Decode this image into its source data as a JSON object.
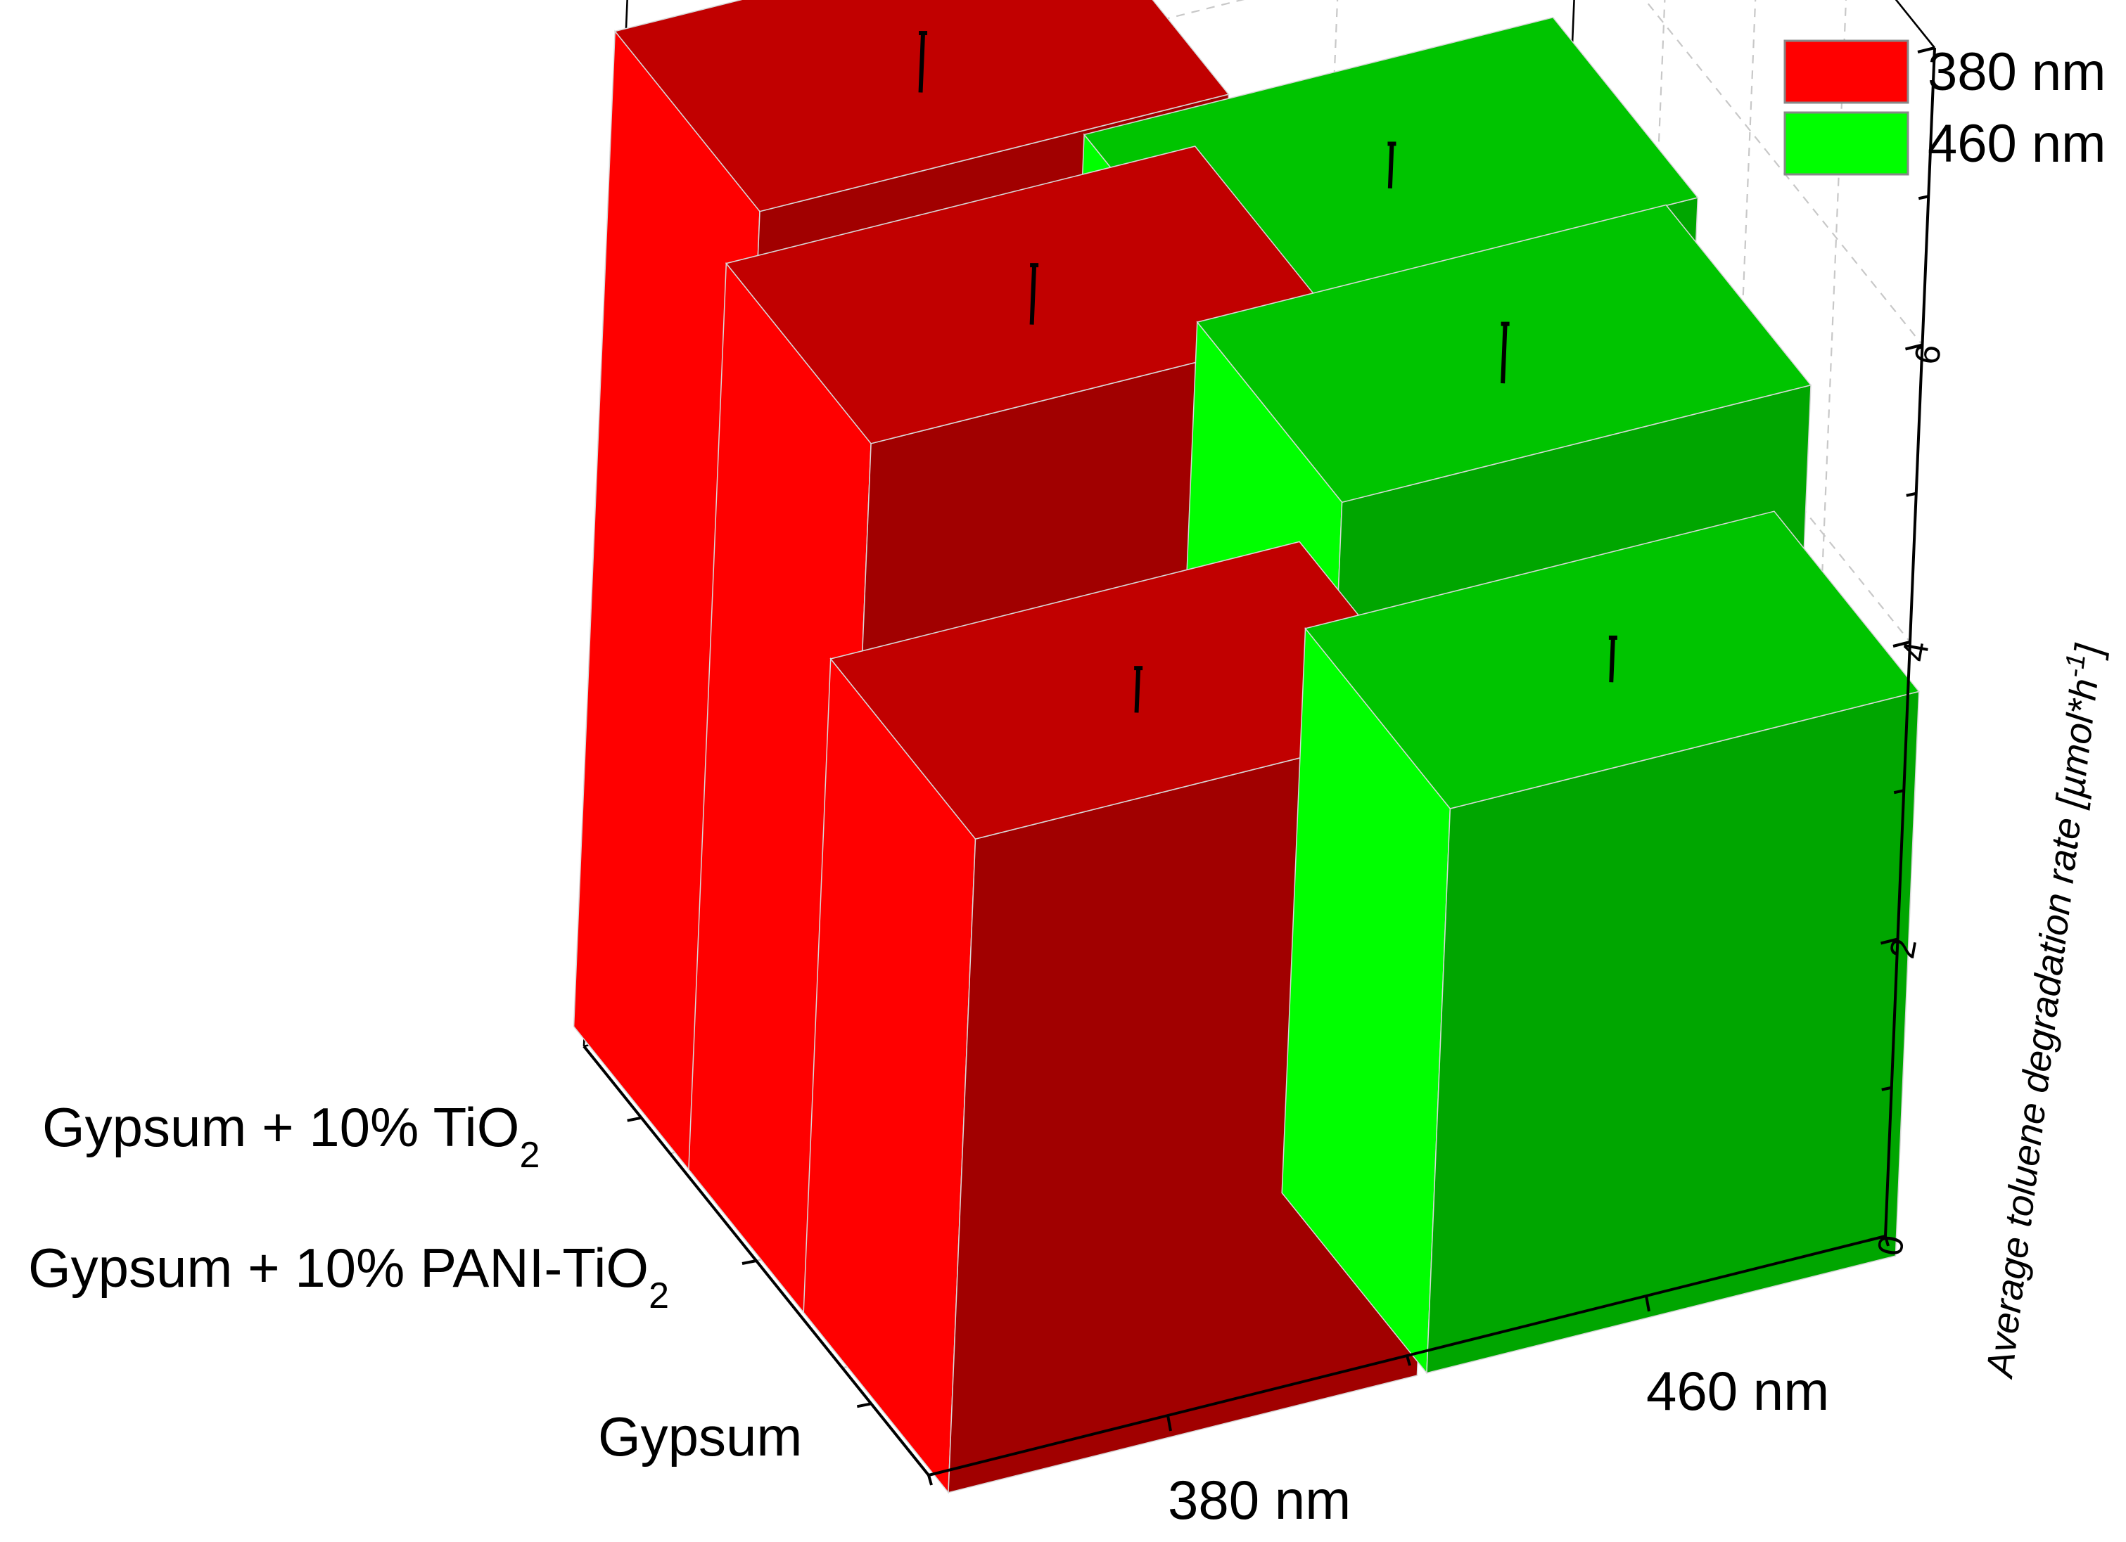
{
  "chart_data": {
    "type": "bar",
    "subtype": "3d-bar",
    "categories": [
      "380 nm",
      "460 nm"
    ],
    "depth_categories": [
      "Gypsum",
      "Gypsum + 10% PANI-TiO2",
      "Gypsum + 10% TiO2"
    ],
    "series": [
      {
        "name": "Gypsum",
        "values": [
          4.4,
          3.8
        ],
        "errors": [
          0.15,
          0.15
        ]
      },
      {
        "name": "Gypsum + 10% PANI-TiO2",
        "values": [
          6.1,
          4.9
        ],
        "errors": [
          0.2,
          0.2
        ]
      },
      {
        "name": "Gypsum + 10% TiO2",
        "values": [
          6.7,
          5.2
        ],
        "errors": [
          0.2,
          0.15
        ]
      }
    ],
    "zlabel": "Average toluene degradation rate [µmol*h⁻¹]",
    "zlim": [
      0,
      8
    ],
    "zticks": [
      "0",
      "2",
      "4",
      "6"
    ],
    "grid": true,
    "legend_position": "top-right",
    "legend": [
      {
        "name": "380 nm",
        "color": "#ff0000"
      },
      {
        "name": "460 nm",
        "color": "#00ff00"
      }
    ]
  },
  "labels": {
    "cat_gypsum": "Gypsum",
    "cat_pani_main": "Gypsum + 10% PANI-TiO",
    "cat_pani_sub": "2",
    "cat_tio2_main": "Gypsum + 10% TiO",
    "cat_tio2_sub": "2",
    "x_380": "380 nm",
    "x_460": "460 nm",
    "z_title_main": "Average toluene degradation rate [µmol*h",
    "z_title_sup": "-1",
    "z_title_end": "]"
  },
  "colors": {
    "red_front": "#a10000",
    "red_side": "#ff0000",
    "red_top": "#c10000",
    "green_front": "#00a600",
    "green_side": "#00ff00",
    "green_top": "#00c400"
  }
}
